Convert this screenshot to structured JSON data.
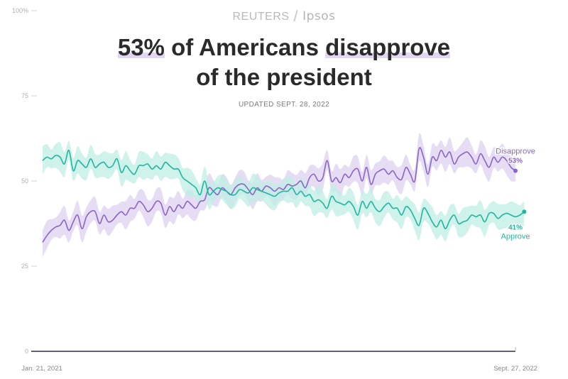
{
  "header": {
    "brand_left": "REUTERS",
    "brand_separator": "/",
    "brand_right": "Ipsos",
    "title_pct": "53%",
    "title_mid": " of Americans ",
    "title_hl2": "disapprove",
    "title_line2": "of the president",
    "updated": "UPDATED SEPT. 28, 2022"
  },
  "colors": {
    "disapprove": "#8a62c9",
    "disapprove_band": "#ddd1f1",
    "approve": "#1fb59f",
    "approve_band": "#bfeee3",
    "title_highlight": "#e2d6f2"
  },
  "chart_data": {
    "type": "line",
    "title": "53% of Americans disapprove of the president",
    "ylim": [
      0,
      100
    ],
    "yticks": [
      0,
      25,
      50,
      75,
      100
    ],
    "ytick_labels": [
      "0",
      "25",
      "50",
      "75",
      "100%"
    ],
    "x_start_label": "Jan. 21, 2021",
    "x_end_label": "Sept. 27, 2022",
    "grid": false,
    "series": [
      {
        "name": "Disapprove",
        "end_label": "53%",
        "band_halfwidth": 3.5,
        "values": [
          32,
          34,
          35.5,
          36.5,
          37,
          38.5,
          35.5,
          38,
          40,
          36,
          39.5,
          41,
          41,
          37.5,
          40,
          38,
          38.5,
          40,
          41,
          40,
          42,
          42,
          44,
          43,
          41,
          42,
          44,
          43.5,
          40,
          42.5,
          41,
          43,
          42,
          44,
          43,
          42,
          44,
          44.5,
          48,
          47,
          46,
          48,
          47,
          46,
          48,
          49,
          49,
          47.5,
          46,
          48,
          47,
          48.5,
          48,
          47,
          48,
          47.5,
          49,
          48.5,
          49,
          50,
          48,
          51,
          52,
          50,
          51,
          56,
          50,
          51,
          49.5,
          52,
          51,
          53,
          53.5,
          50,
          54,
          49,
          52,
          53,
          53.5,
          52,
          53,
          51,
          50.5,
          54,
          52,
          50,
          59.5,
          57,
          52,
          57,
          56,
          59,
          57,
          58.5,
          55,
          57,
          58,
          58.5,
          57,
          55,
          58,
          56,
          54,
          57,
          55.5,
          57,
          56,
          54,
          53
        ]
      },
      {
        "name": "Approve",
        "end_label": "41%",
        "band_halfwidth": 3.5,
        "values": [
          56,
          57,
          56.5,
          57.5,
          57,
          55,
          59,
          53,
          56,
          55,
          54,
          56.5,
          54,
          55,
          55.5,
          54,
          54.5,
          56.5,
          52.5,
          54.5,
          53,
          52,
          54.5,
          54.5,
          55,
          53.5,
          54.5,
          53.5,
          55.5,
          54.5,
          53.5,
          53.5,
          51,
          50,
          49,
          48,
          46,
          50,
          46,
          47,
          48,
          47.5,
          47,
          46,
          46,
          47.5,
          47,
          46.5,
          48,
          47.5,
          47,
          46.5,
          46,
          45.5,
          46.5,
          47,
          47,
          48,
          46,
          47,
          45.5,
          46,
          44,
          44.5,
          43.5,
          42,
          45.5,
          44,
          43.5,
          43,
          44,
          42.5,
          40,
          44,
          42,
          44,
          42,
          41,
          42.5,
          43.5,
          42,
          42,
          40,
          42.5,
          41.5,
          39,
          37,
          42,
          40.5,
          38,
          36.5,
          38.5,
          36,
          38.5,
          40,
          37.5,
          38,
          38.5,
          40,
          39.5,
          40,
          38,
          40.5,
          40.5,
          39,
          40,
          40.5,
          40,
          39.5,
          40,
          41
        ]
      }
    ]
  }
}
